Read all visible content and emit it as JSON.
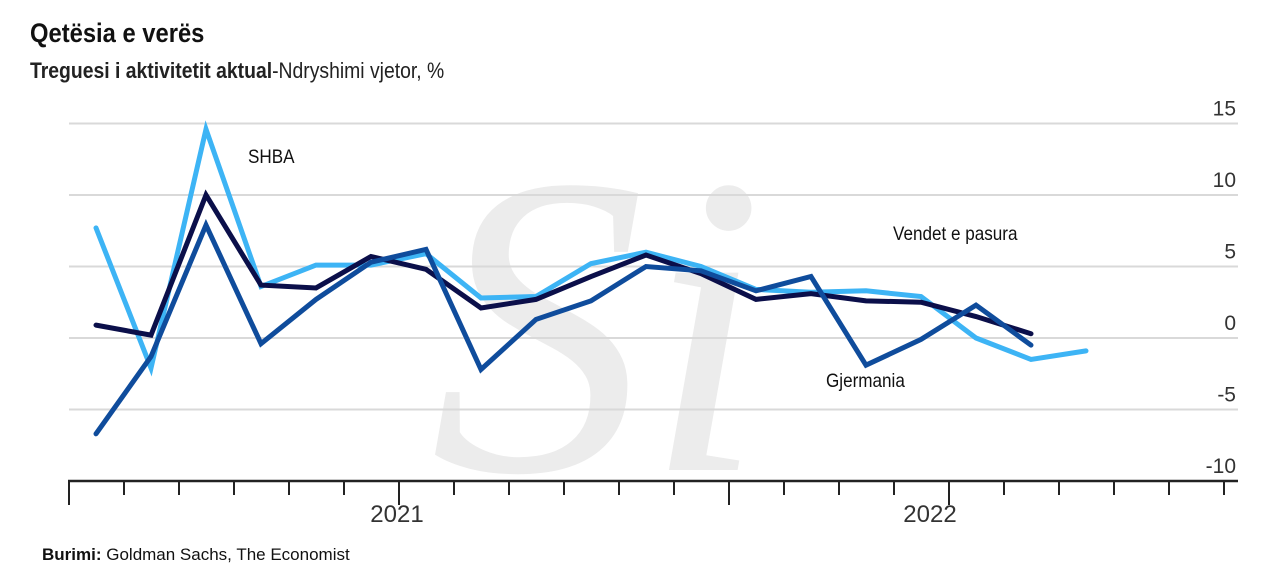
{
  "header": {
    "title": "Qetësia e verës",
    "subtitle_bold": "Treguesi i aktivitetit aktual",
    "subtitle_rest": "-Ndryshimi vjetor, %"
  },
  "footer": {
    "source_label": "Burimi:",
    "source_text": "Goldman Sachs, The Economist"
  },
  "watermark": "Si",
  "chart_data": {
    "type": "line",
    "title": "Qetësia e verës",
    "ylabel": "Ndryshimi vjetor, %",
    "ylim": [
      -10,
      15
    ],
    "yticks": [
      "15",
      "10",
      "5",
      "0",
      "-5",
      "-10"
    ],
    "ytick_values": [
      15,
      10,
      5,
      0,
      -5,
      -10
    ],
    "xtick_labels": [
      "2021",
      "2022"
    ],
    "grid": true,
    "series": [
      {
        "name": "SHBA",
        "color": "#3db4f5",
        "values": [
          7.7,
          -2.1,
          14.6,
          3.6,
          5.1,
          5.1,
          5.9,
          2.8,
          2.9,
          5.2,
          6.0,
          5.0,
          3.4,
          3.2,
          3.3,
          2.9,
          0.0,
          -1.5,
          -0.9
        ]
      },
      {
        "name": "Vendet e pasura",
        "color": "#0b0f4a",
        "values": [
          0.9,
          0.2,
          10.0,
          3.7,
          3.5,
          5.7,
          4.8,
          2.1,
          2.7,
          4.3,
          5.8,
          4.5,
          2.7,
          3.1,
          2.6,
          2.5,
          1.5,
          0.3
        ]
      },
      {
        "name": "Gjermania",
        "color": "#0f4c9c",
        "values": [
          -6.7,
          -1.3,
          7.9,
          -0.4,
          2.7,
          5.3,
          6.2,
          -2.2,
          1.3,
          2.6,
          5.0,
          4.7,
          3.3,
          4.3,
          -1.9,
          -0.1,
          2.3,
          -0.5
        ]
      }
    ]
  }
}
